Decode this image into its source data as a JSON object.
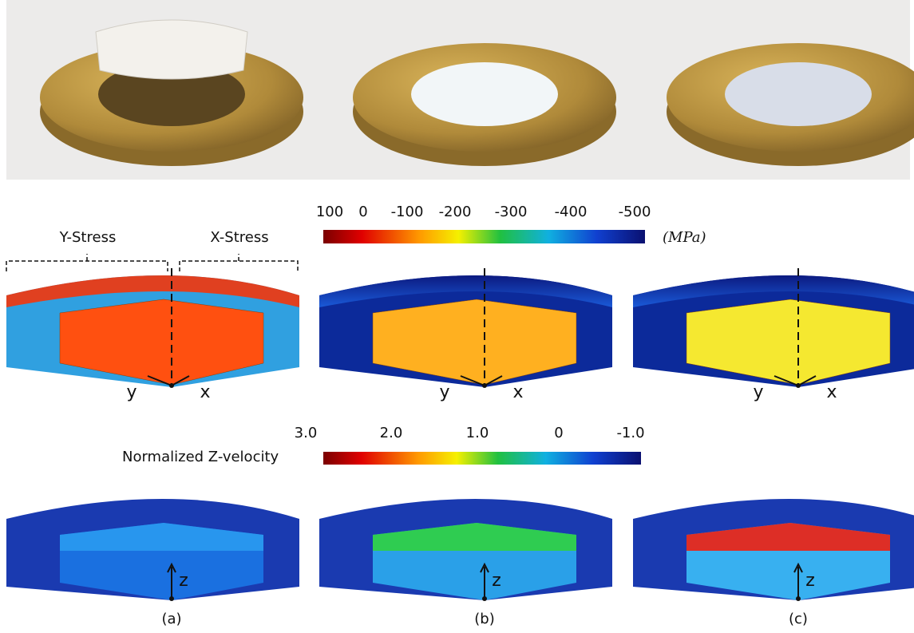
{
  "stress_colorbar": {
    "ticks": [
      "100",
      "0",
      "-100",
      "-200",
      "-300",
      "-400",
      "-500"
    ],
    "unit": "(MPa)"
  },
  "stress_labels": {
    "left": "Y-Stress",
    "right": "X-Stress"
  },
  "velocity_colorbar": {
    "label": "Normalized Z-velocity",
    "ticks": [
      "3.0",
      "2.0",
      "1.0",
      "0",
      "-1.0"
    ]
  },
  "panels": [
    {
      "label": "(a)",
      "stress_axes": [
        "y",
        "x"
      ],
      "velocity_axis": "z"
    },
    {
      "label": "(b)",
      "stress_axes": [
        "y",
        "x"
      ],
      "velocity_axis": "z"
    },
    {
      "label": "(c)",
      "stress_axes": [
        "y",
        "x"
      ],
      "velocity_axis": "z"
    }
  ]
}
